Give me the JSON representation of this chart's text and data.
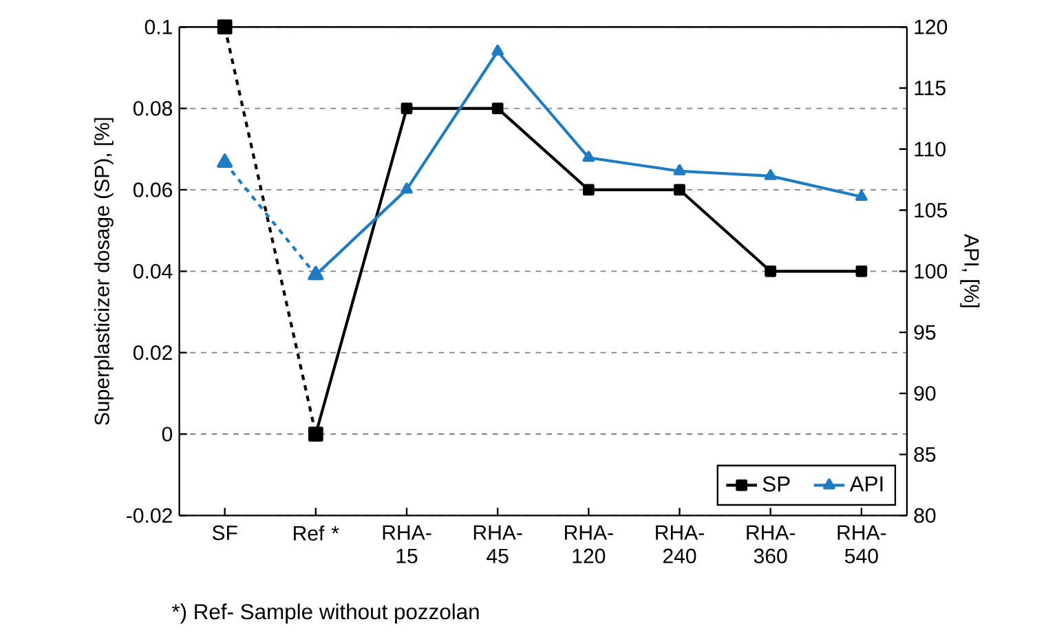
{
  "chart_data": {
    "type": "line",
    "ylabel": "Superplasticizer dosage (SP), [%]",
    "y2label": "API, [%]",
    "categories": [
      "SF",
      "Ref *",
      "RHA-15",
      "RHA-45",
      "RHA-120",
      "RHA-240",
      "RHA-360",
      "RHA-540"
    ],
    "series": [
      {
        "color": "#000000",
        "axis": "y",
        "marker": "square",
        "line_style": "dashed",
        "values": [
          0.1,
          0,
          null,
          null,
          null,
          null,
          null,
          null
        ]
      },
      {
        "color": "#1f7bc2",
        "axis": "y2",
        "marker": "triangle",
        "line_style": "dashed",
        "values": [
          108.9,
          99.7,
          null,
          null,
          null,
          null,
          null,
          null
        ]
      },
      {
        "name": "SP",
        "color": "#000000",
        "axis": "y",
        "marker": "square",
        "line_style": "solid",
        "values": [
          null,
          0,
          0.08,
          0.08,
          0.06,
          0.06,
          0.04,
          0.04
        ]
      },
      {
        "name": "API",
        "color": "#1f7bc2",
        "axis": "y2",
        "marker": "triangle",
        "line_style": "solid",
        "values": [
          null,
          99.7,
          106.7,
          118,
          109.3,
          108.2,
          107.8,
          106.1
        ]
      }
    ],
    "ylim": [
      -0.02,
      0.1
    ],
    "yticks": [
      -0.02,
      0,
      0.02,
      0.04,
      0.06,
      0.08,
      0.1
    ],
    "y2lim": [
      80,
      120
    ],
    "y2ticks": [
      80,
      85,
      90,
      95,
      100,
      105,
      110,
      115,
      120
    ],
    "grid": "y",
    "legend": "bottom right",
    "annotations": [
      "*) Ref- Sample without pozzolan"
    ]
  }
}
